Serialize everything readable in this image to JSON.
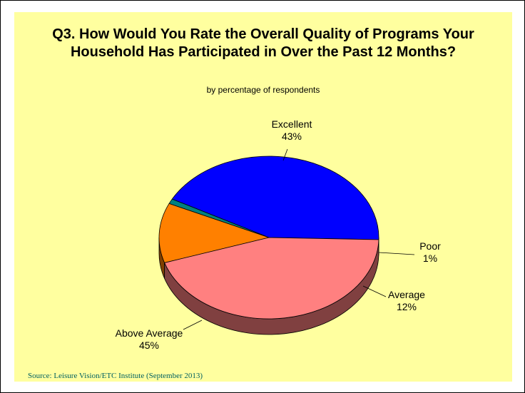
{
  "title_line1": "Q3. How Would You Rate the Overall Quality of Programs Your",
  "title_line2": "Household Has Participated in Over the Past 12 Months?",
  "subtitle": "by percentage of respondents",
  "source": "Source:  Leisure Vision/ETC Institute (September 2013)",
  "chart_data": {
    "type": "pie",
    "style": "3d",
    "title": "Q3. How Would You Rate the Overall Quality of Programs Your Household Has Participated in Over the Past 12 Months?",
    "subtitle": "by percentage of respondents",
    "categories": [
      "Excellent",
      "Poor",
      "Average",
      "Above Average"
    ],
    "values": [
      43,
      1,
      12,
      45
    ],
    "value_labels": [
      "43%",
      "1%",
      "12%",
      "45%"
    ],
    "colors": [
      "#0000ff",
      "#008080",
      "#ff8000",
      "#ff8080"
    ],
    "side_colors": [
      "#00007f",
      "#004040",
      "#804000",
      "#804040"
    ]
  }
}
